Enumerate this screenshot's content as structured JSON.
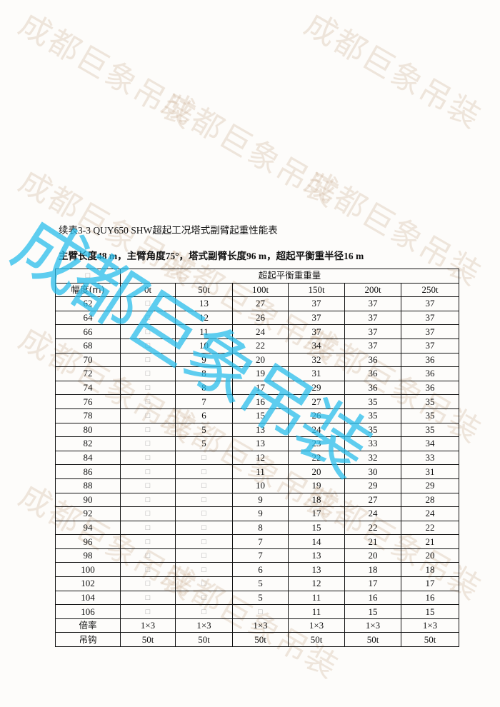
{
  "watermark": "成都巨象吊装",
  "title": "续表3-3 QUY650 SHW超起工况塔式副臂起重性能表",
  "subtitle": "主臂长度48 m，主臂角度75°，塔式副臂长度96 m，超起平衡重半径16 m",
  "table": {
    "corner": "□",
    "group_header": "超起平衡重重量",
    "row_header": "幅度(m)",
    "columns": [
      "0t",
      "50t",
      "100t",
      "150t",
      "200t",
      "250t"
    ],
    "rows": [
      [
        "62",
        "□",
        "13",
        "27",
        "37",
        "37",
        "37"
      ],
      [
        "64",
        "□",
        "12",
        "26",
        "37",
        "37",
        "37"
      ],
      [
        "66",
        "□",
        "11",
        "24",
        "37",
        "37",
        "37"
      ],
      [
        "68",
        "□",
        "10",
        "22",
        "34",
        "37",
        "37"
      ],
      [
        "70",
        "□",
        "9",
        "20",
        "32",
        "36",
        "36"
      ],
      [
        "72",
        "□",
        "8",
        "19",
        "31",
        "36",
        "36"
      ],
      [
        "74",
        "□",
        "8",
        "17",
        "29",
        "36",
        "36"
      ],
      [
        "76",
        "□",
        "7",
        "16",
        "27",
        "35",
        "35"
      ],
      [
        "78",
        "□",
        "6",
        "15",
        "26",
        "35",
        "35"
      ],
      [
        "80",
        "□",
        "5",
        "13",
        "24",
        "35",
        "35"
      ],
      [
        "82",
        "□",
        "5",
        "13",
        "23",
        "33",
        "34"
      ],
      [
        "84",
        "□",
        "□",
        "12",
        "22",
        "32",
        "33"
      ],
      [
        "86",
        "□",
        "□",
        "11",
        "20",
        "30",
        "31"
      ],
      [
        "88",
        "□",
        "□",
        "10",
        "19",
        "29",
        "29"
      ],
      [
        "90",
        "□",
        "□",
        "9",
        "18",
        "27",
        "28"
      ],
      [
        "92",
        "□",
        "□",
        "9",
        "17",
        "24",
        "24"
      ],
      [
        "94",
        "□",
        "□",
        "8",
        "15",
        "22",
        "22"
      ],
      [
        "96",
        "□",
        "□",
        "7",
        "14",
        "21",
        "21"
      ],
      [
        "98",
        "□",
        "□",
        "7",
        "13",
        "20",
        "20"
      ],
      [
        "100",
        "□",
        "□",
        "6",
        "13",
        "18",
        "18"
      ],
      [
        "102",
        "□",
        "□",
        "5",
        "12",
        "17",
        "17"
      ],
      [
        "104",
        "□",
        "□",
        "5",
        "11",
        "16",
        "16"
      ],
      [
        "106",
        "□",
        "□",
        "□",
        "11",
        "15",
        "15"
      ]
    ],
    "footer_rows": [
      [
        "倍率",
        "1×3",
        "1×3",
        "1×3",
        "1×3",
        "1×3",
        "1×3"
      ],
      [
        "吊钩",
        "50t",
        "50t",
        "50t",
        "50t",
        "50t",
        "50t"
      ]
    ]
  }
}
